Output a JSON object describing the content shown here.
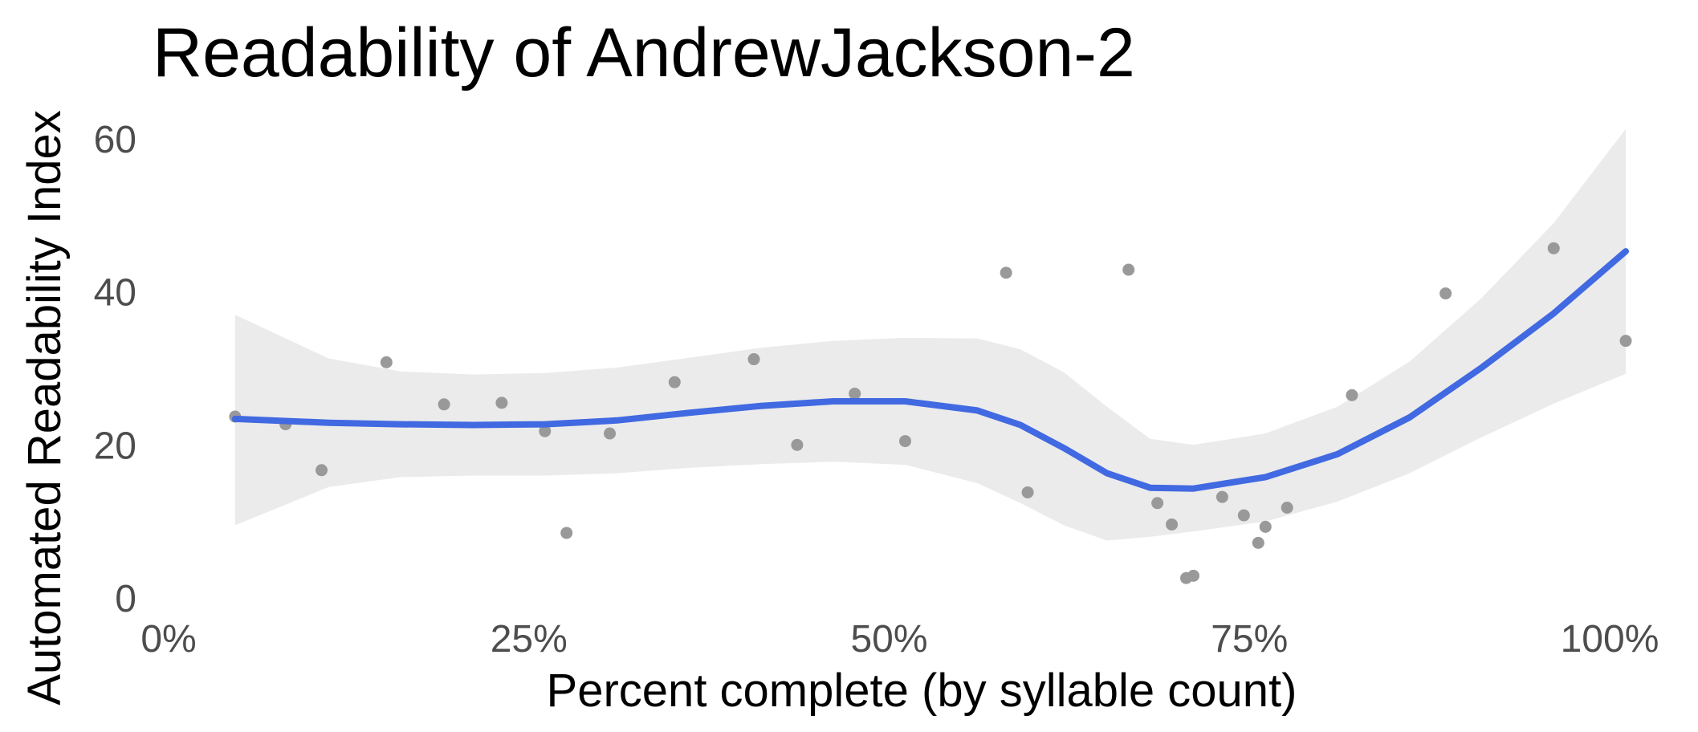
{
  "chart_data": {
    "type": "scatter",
    "title": "Readability of AndrewJackson-2",
    "xlabel": "Percent complete (by syllable count)",
    "ylabel": "Automated Readability Index",
    "xlim": [
      0,
      100
    ],
    "ylim": [
      0,
      60
    ],
    "x_ticks": [
      0,
      25,
      50,
      75,
      100
    ],
    "x_tick_labels": [
      "0%",
      "25%",
      "50%",
      "75%",
      "100%"
    ],
    "y_ticks": [
      0,
      20,
      40,
      60
    ],
    "y_tick_labels": [
      "0",
      "20",
      "40",
      "60"
    ],
    "grid": false,
    "colors": {
      "points": "#999999",
      "smooth_line": "#4169e1",
      "confidence_band": "#ebebeb"
    },
    "points": [
      {
        "x": 3.5,
        "y": 23.7
      },
      {
        "x": 7.0,
        "y": 22.7
      },
      {
        "x": 9.5,
        "y": 16.7
      },
      {
        "x": 14.0,
        "y": 30.8
      },
      {
        "x": 18.0,
        "y": 25.3
      },
      {
        "x": 22.0,
        "y": 25.5
      },
      {
        "x": 25.0,
        "y": 21.8
      },
      {
        "x": 26.5,
        "y": 8.5
      },
      {
        "x": 29.5,
        "y": 21.5
      },
      {
        "x": 34.0,
        "y": 28.2
      },
      {
        "x": 39.5,
        "y": 31.2
      },
      {
        "x": 42.5,
        "y": 20.0
      },
      {
        "x": 46.5,
        "y": 26.7
      },
      {
        "x": 50.0,
        "y": 20.5
      },
      {
        "x": 57.0,
        "y": 42.5
      },
      {
        "x": 58.5,
        "y": 13.8
      },
      {
        "x": 65.5,
        "y": 42.9
      },
      {
        "x": 67.5,
        "y": 12.4
      },
      {
        "x": 68.5,
        "y": 9.6
      },
      {
        "x": 69.5,
        "y": 2.6
      },
      {
        "x": 70.0,
        "y": 2.9
      },
      {
        "x": 72.0,
        "y": 13.2
      },
      {
        "x": 73.5,
        "y": 10.8
      },
      {
        "x": 74.5,
        "y": 7.2
      },
      {
        "x": 75.0,
        "y": 9.3
      },
      {
        "x": 76.5,
        "y": 11.8
      },
      {
        "x": 81.0,
        "y": 26.5
      },
      {
        "x": 87.5,
        "y": 39.8
      },
      {
        "x": 95.0,
        "y": 45.7
      },
      {
        "x": 100.0,
        "y": 33.6
      }
    ],
    "smooth": [
      {
        "x": 3.5,
        "y": 23.4,
        "lo": 9.5,
        "hi": 37.0
      },
      {
        "x": 10,
        "y": 22.9,
        "lo": 14.5,
        "hi": 31.3
      },
      {
        "x": 15,
        "y": 22.7,
        "lo": 15.8,
        "hi": 29.6
      },
      {
        "x": 20,
        "y": 22.6,
        "lo": 16.0,
        "hi": 29.2
      },
      {
        "x": 25,
        "y": 22.7,
        "lo": 16.0,
        "hi": 29.4
      },
      {
        "x": 30,
        "y": 23.2,
        "lo": 16.3,
        "hi": 30.1
      },
      {
        "x": 35,
        "y": 24.2,
        "lo": 17.0,
        "hi": 31.4
      },
      {
        "x": 40,
        "y": 25.1,
        "lo": 17.5,
        "hi": 32.7
      },
      {
        "x": 45,
        "y": 25.7,
        "lo": 17.8,
        "hi": 33.6
      },
      {
        "x": 50,
        "y": 25.7,
        "lo": 17.4,
        "hi": 34.0
      },
      {
        "x": 55,
        "y": 24.5,
        "lo": 15.0,
        "hi": 33.9
      },
      {
        "x": 58,
        "y": 22.6,
        "lo": 12.4,
        "hi": 32.5
      },
      {
        "x": 61,
        "y": 19.6,
        "lo": 9.5,
        "hi": 29.5
      },
      {
        "x": 64,
        "y": 16.3,
        "lo": 7.5,
        "hi": 25.0
      },
      {
        "x": 67,
        "y": 14.4,
        "lo": 8.0,
        "hi": 20.8
      },
      {
        "x": 70,
        "y": 14.3,
        "lo": 8.7,
        "hi": 20.0
      },
      {
        "x": 75,
        "y": 15.8,
        "lo": 10.0,
        "hi": 21.5
      },
      {
        "x": 80,
        "y": 18.8,
        "lo": 12.6,
        "hi": 25.0
      },
      {
        "x": 85,
        "y": 23.6,
        "lo": 16.3,
        "hi": 30.9
      },
      {
        "x": 90,
        "y": 30.1,
        "lo": 21.0,
        "hi": 39.2
      },
      {
        "x": 95,
        "y": 37.2,
        "lo": 25.4,
        "hi": 49.0
      },
      {
        "x": 100,
        "y": 45.3,
        "lo": 29.3,
        "hi": 61.3
      }
    ]
  }
}
